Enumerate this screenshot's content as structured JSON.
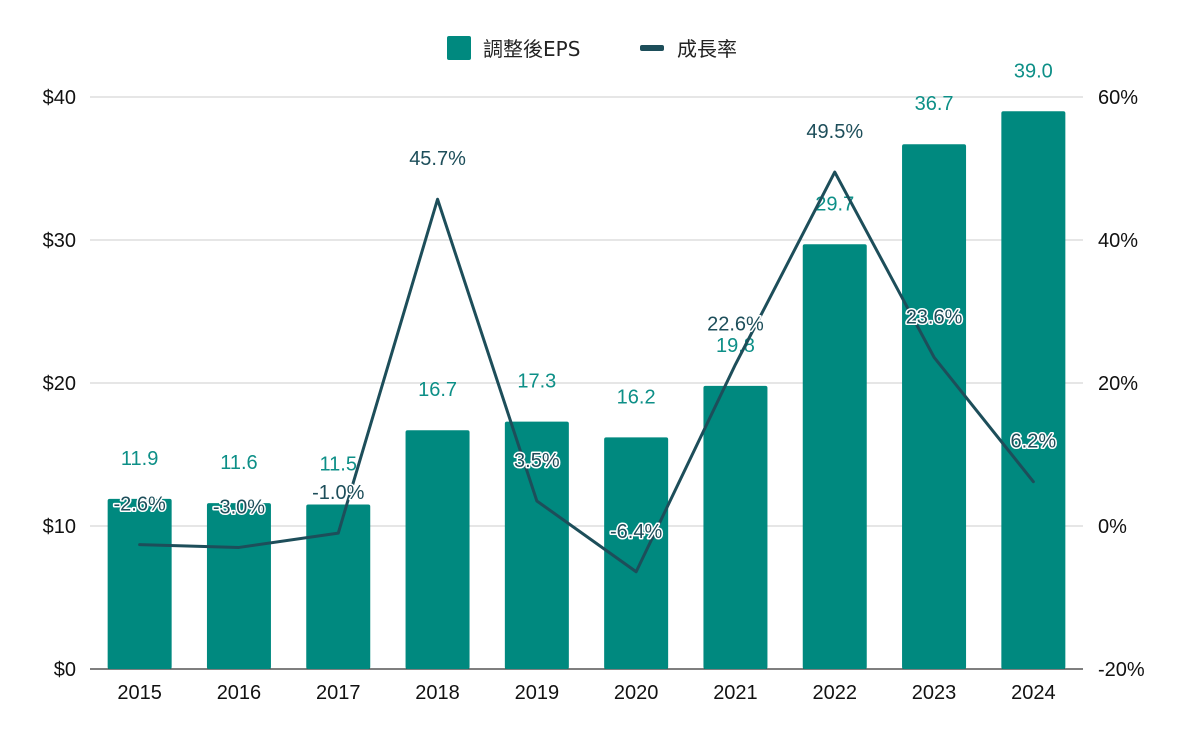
{
  "chart_data": {
    "type": "bar",
    "categories": [
      "2015",
      "2016",
      "2017",
      "2018",
      "2019",
      "2020",
      "2021",
      "2022",
      "2023",
      "2024"
    ],
    "series": [
      {
        "name": "調整後EPS",
        "type": "bar",
        "axis": "left",
        "values": [
          11.9,
          11.6,
          11.5,
          16.7,
          17.3,
          16.2,
          19.8,
          29.7,
          36.7,
          39.0
        ],
        "labels": [
          "11.9",
          "11.6",
          "11.5",
          "16.7",
          "17.3",
          "16.2",
          "19.8",
          "29.7",
          "36.7",
          "39.0"
        ],
        "color": "#00897f"
      },
      {
        "name": "成長率",
        "type": "line",
        "axis": "right",
        "values": [
          -2.6,
          -3.0,
          -1.0,
          45.7,
          3.5,
          -6.4,
          22.6,
          49.5,
          23.6,
          6.2
        ],
        "labels": [
          "-2.6%",
          "-3.0%",
          "-1.0%",
          "45.7%",
          "3.5%",
          "-6.4%",
          "22.6%",
          "49.5%",
          "23.6%",
          "6.2%"
        ],
        "color": "#1d4e5a"
      }
    ],
    "y_left": {
      "ylim": [
        0,
        40
      ],
      "ticks": [
        "$0",
        "$10",
        "$20",
        "$30",
        "$40"
      ]
    },
    "y_right": {
      "ylim": [
        -20,
        60
      ],
      "ticks": [
        "-20%",
        "0%",
        "20%",
        "40%",
        "60%"
      ]
    },
    "grid": true,
    "legend_position": "top-center",
    "title": "",
    "xlabel": "",
    "ylabel": ""
  }
}
